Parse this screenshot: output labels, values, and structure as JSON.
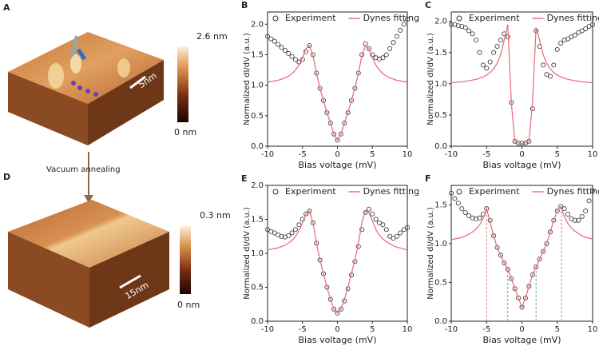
{
  "images": [
    {
      "panel": "A",
      "scale_bar": "5nm",
      "colorbar_max": "2.6 nm",
      "colorbar_min": "0 nm"
    },
    {
      "panel": "D",
      "scale_bar": "15nm",
      "colorbar_max": "0.3 nm",
      "colorbar_min": "0 nm"
    }
  ],
  "arrow_label": "Vacuum annealing",
  "chart_data": [
    {
      "type": "line",
      "panel": "B",
      "xlabel": "Bias voltage (mV)",
      "ylabel": "Normalized dI/dV (a.u.)",
      "legend": "top",
      "xlim": [
        -10,
        10
      ],
      "xticks": [
        -10,
        -5,
        0,
        5,
        10
      ],
      "ylim": [
        0,
        2.2
      ],
      "yticks": [
        {
          "value": 0,
          "label": "0.0"
        },
        {
          "value": 0.5,
          "label": "0.5"
        },
        {
          "value": 1,
          "label": "1.0"
        },
        {
          "value": 1.5,
          "label": "1.5"
        },
        {
          "value": 2,
          "label": "2.0"
        }
      ],
      "x": [
        -10,
        -9.5,
        -9,
        -8.5,
        -8,
        -7.5,
        -7,
        -6.5,
        -6,
        -5.5,
        -5,
        -4.5,
        -4,
        -3.5,
        -3,
        -2.5,
        -2,
        -1.5,
        -1,
        -0.5,
        0,
        0.5,
        1,
        1.5,
        2,
        2.5,
        3,
        3.5,
        4,
        4.5,
        5,
        5.5,
        6,
        6.5,
        7,
        7.5,
        8,
        8.5,
        9,
        9.5,
        10
      ],
      "series": [
        {
          "name": "Experiment",
          "color": "#333333",
          "marker": "circle",
          "values": [
            1.8,
            1.76,
            1.72,
            1.67,
            1.62,
            1.57,
            1.52,
            1.47,
            1.42,
            1.38,
            1.42,
            1.55,
            1.65,
            1.5,
            1.2,
            0.95,
            0.75,
            0.55,
            0.38,
            0.2,
            0.1,
            0.2,
            0.38,
            0.55,
            0.75,
            0.95,
            1.2,
            1.5,
            1.68,
            1.6,
            1.5,
            1.45,
            1.43,
            1.45,
            1.5,
            1.6,
            1.7,
            1.8,
            1.9,
            2.0,
            2.08
          ]
        },
        {
          "name": "Dynes fitting",
          "color": "#e8737f",
          "marker": "none",
          "values": [
            1.05,
            1.06,
            1.07,
            1.08,
            1.1,
            1.12,
            1.15,
            1.19,
            1.25,
            1.33,
            1.45,
            1.6,
            1.65,
            1.48,
            1.2,
            0.95,
            0.75,
            0.55,
            0.38,
            0.2,
            0.1,
            0.2,
            0.38,
            0.55,
            0.75,
            0.95,
            1.2,
            1.48,
            1.65,
            1.6,
            1.45,
            1.33,
            1.25,
            1.19,
            1.15,
            1.12,
            1.1,
            1.08,
            1.07,
            1.06,
            1.05
          ]
        }
      ]
    },
    {
      "type": "line",
      "panel": "C",
      "xlabel": "Bias voltage (mV)",
      "ylabel": "Normalized dI/dV (a.u.)",
      "legend": "top",
      "xlim": [
        -10,
        10
      ],
      "xticks": [
        -10,
        -5,
        0,
        5,
        10
      ],
      "ylim": [
        0,
        2.15
      ],
      "yticks": [
        {
          "value": 0,
          "label": "0.0"
        },
        {
          "value": 0.5,
          "label": "0.5"
        },
        {
          "value": 1,
          "label": "1.0"
        },
        {
          "value": 1.5,
          "label": "1.5"
        },
        {
          "value": 2,
          "label": "2.0"
        }
      ],
      "x": [
        -10,
        -9.5,
        -9,
        -8.5,
        -8,
        -7.5,
        -7,
        -6.5,
        -6,
        -5.5,
        -5,
        -4.5,
        -4,
        -3.5,
        -3,
        -2.5,
        -2,
        -1.5,
        -1,
        -0.5,
        0,
        0.5,
        1,
        1.5,
        2,
        2.5,
        3,
        3.5,
        4,
        4.5,
        5,
        5.5,
        6,
        6.5,
        7,
        7.5,
        8,
        8.5,
        9,
        9.5,
        10
      ],
      "series": [
        {
          "name": "Experiment",
          "color": "#333333",
          "marker": "circle",
          "values": [
            1.95,
            1.95,
            1.93,
            1.92,
            1.9,
            1.85,
            1.8,
            1.7,
            1.5,
            1.3,
            1.25,
            1.35,
            1.5,
            1.6,
            1.7,
            1.8,
            1.75,
            0.7,
            0.08,
            0.05,
            0.05,
            0.05,
            0.08,
            0.6,
            1.85,
            1.6,
            1.3,
            1.15,
            1.12,
            1.3,
            1.55,
            1.65,
            1.7,
            1.72,
            1.75,
            1.78,
            1.82,
            1.85,
            1.88,
            1.92,
            1.95
          ]
        },
        {
          "name": "Dynes fitting",
          "color": "#e8737f",
          "marker": "none",
          "values": [
            1.02,
            1.02,
            1.03,
            1.03,
            1.04,
            1.05,
            1.06,
            1.07,
            1.09,
            1.11,
            1.14,
            1.18,
            1.24,
            1.33,
            1.47,
            1.7,
            1.95,
            0.7,
            0.08,
            0.05,
            0.04,
            0.05,
            0.08,
            0.7,
            1.9,
            1.7,
            1.47,
            1.33,
            1.24,
            1.18,
            1.14,
            1.11,
            1.09,
            1.07,
            1.06,
            1.05,
            1.04,
            1.03,
            1.03,
            1.02,
            1.02
          ]
        }
      ]
    },
    {
      "type": "line",
      "panel": "E",
      "xlabel": "Bias voltage (mV)",
      "ylabel": "Normalized dI/dV (a.u.)",
      "legend": "top",
      "xlim": [
        -10,
        10
      ],
      "xticks": [
        -10,
        -5,
        0,
        5,
        10
      ],
      "ylim": [
        0,
        2.0
      ],
      "yticks": [
        {
          "value": 0,
          "label": "0.0"
        },
        {
          "value": 0.5,
          "label": "0.5"
        },
        {
          "value": 1,
          "label": "1.0"
        },
        {
          "value": 1.5,
          "label": "1.5"
        },
        {
          "value": 2,
          "label": "2.0"
        }
      ],
      "x": [
        -10,
        -9.5,
        -9,
        -8.5,
        -8,
        -7.5,
        -7,
        -6.5,
        -6,
        -5.5,
        -5,
        -4.5,
        -4,
        -3.5,
        -3,
        -2.5,
        -2,
        -1.5,
        -1,
        -0.5,
        0,
        0.5,
        1,
        1.5,
        2,
        2.5,
        3,
        3.5,
        4,
        4.5,
        5,
        5.5,
        6,
        6.5,
        7,
        7.5,
        8,
        8.5,
        9,
        9.5,
        10
      ],
      "series": [
        {
          "name": "Experiment",
          "color": "#333333",
          "marker": "circle",
          "values": [
            1.35,
            1.32,
            1.3,
            1.27,
            1.25,
            1.24,
            1.26,
            1.3,
            1.35,
            1.42,
            1.5,
            1.58,
            1.62,
            1.45,
            1.15,
            0.9,
            0.7,
            0.5,
            0.32,
            0.18,
            0.12,
            0.18,
            0.3,
            0.48,
            0.68,
            0.88,
            1.1,
            1.35,
            1.6,
            1.65,
            1.58,
            1.5,
            1.45,
            1.42,
            1.35,
            1.25,
            1.22,
            1.25,
            1.3,
            1.35,
            1.38
          ]
        },
        {
          "name": "Dynes fitting",
          "color": "#e8737f",
          "marker": "none",
          "values": [
            1.05,
            1.06,
            1.07,
            1.08,
            1.1,
            1.12,
            1.15,
            1.19,
            1.25,
            1.33,
            1.45,
            1.58,
            1.62,
            1.45,
            1.15,
            0.9,
            0.7,
            0.5,
            0.32,
            0.18,
            0.12,
            0.18,
            0.32,
            0.5,
            0.7,
            0.9,
            1.15,
            1.45,
            1.62,
            1.6,
            1.48,
            1.35,
            1.27,
            1.21,
            1.17,
            1.14,
            1.11,
            1.09,
            1.08,
            1.06,
            1.05
          ]
        }
      ]
    },
    {
      "type": "line",
      "panel": "F",
      "xlabel": "Bias voltage (mV)",
      "ylabel": "Normalized dI/dV (a.u.)",
      "legend": "top",
      "xlim": [
        -10,
        10
      ],
      "xticks": [
        -10,
        -5,
        0,
        5,
        10
      ],
      "ylim": [
        0,
        1.75
      ],
      "yticks": [
        {
          "value": 0,
          "label": "0.0"
        },
        {
          "value": 0.5,
          "label": "0.5"
        },
        {
          "value": 1,
          "label": "1.0"
        },
        {
          "value": 1.5,
          "label": "1.5"
        }
      ],
      "vlines": [
        {
          "x": -5,
          "color": "#e8737f"
        },
        {
          "x": -2,
          "color": "#5fa88a"
        },
        {
          "x": 2,
          "color": "#5fa88a"
        },
        {
          "x": 5.6,
          "color": "#e8737f"
        }
      ],
      "x": [
        -10,
        -9.5,
        -9,
        -8.5,
        -8,
        -7.5,
        -7,
        -6.5,
        -6,
        -5.5,
        -5,
        -4.5,
        -4,
        -3.5,
        -3,
        -2.5,
        -2,
        -1.5,
        -1,
        -0.5,
        0,
        0.5,
        1,
        1.5,
        2,
        2.5,
        3,
        3.5,
        4,
        4.5,
        5,
        5.5,
        6,
        6.5,
        7,
        7.5,
        8,
        8.5,
        9,
        9.5,
        10
      ],
      "series": [
        {
          "name": "Experiment",
          "color": "#333333",
          "marker": "circle",
          "values": [
            1.65,
            1.58,
            1.52,
            1.45,
            1.4,
            1.36,
            1.33,
            1.32,
            1.33,
            1.38,
            1.45,
            1.3,
            1.1,
            0.95,
            0.85,
            0.75,
            0.67,
            0.55,
            0.42,
            0.3,
            0.18,
            0.3,
            0.45,
            0.6,
            0.7,
            0.8,
            0.9,
            1.0,
            1.15,
            1.3,
            1.42,
            1.48,
            1.45,
            1.38,
            1.32,
            1.3,
            1.3,
            1.35,
            1.42,
            1.55,
            1.68
          ]
        },
        {
          "name": "Dynes fitting",
          "color": "#e8737f",
          "marker": "none",
          "values": [
            1.05,
            1.06,
            1.07,
            1.08,
            1.1,
            1.12,
            1.15,
            1.19,
            1.24,
            1.32,
            1.45,
            1.28,
            1.1,
            0.95,
            0.85,
            0.75,
            0.67,
            0.55,
            0.42,
            0.3,
            0.18,
            0.3,
            0.45,
            0.6,
            0.7,
            0.8,
            0.9,
            1.0,
            1.15,
            1.3,
            1.42,
            1.48,
            1.35,
            1.26,
            1.2,
            1.16,
            1.13,
            1.1,
            1.08,
            1.07,
            1.06
          ]
        }
      ]
    }
  ]
}
